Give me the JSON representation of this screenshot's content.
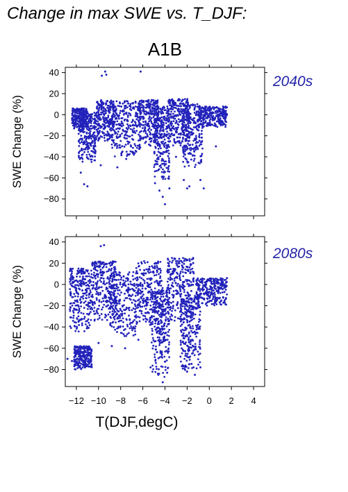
{
  "figure_title": "Change in max SWE vs. T_DJF:",
  "scenario": "A1B",
  "colors": {
    "points": "#2222bb",
    "period_label": "#2323a8"
  },
  "chart_data": [
    {
      "type": "scatter",
      "period": "2040s",
      "xlabel": "T(DJF,degC)",
      "ylabel": "SWE Change (%)",
      "xlim": [
        -13,
        5
      ],
      "ylim": [
        -96,
        45
      ],
      "xticks": [
        -12,
        -10,
        -8,
        -6,
        -4,
        -2,
        0,
        2,
        4
      ],
      "yticks": [
        40,
        20,
        0,
        -20,
        -40,
        -60,
        -80
      ],
      "xtick_labels_shown": false,
      "clusters": [
        {
          "x": [
            -12.4,
            -11.0
          ],
          "y": [
            -12,
            6
          ]
        },
        {
          "x": [
            -11.8,
            -10.2
          ],
          "y": [
            -45,
            2
          ]
        },
        {
          "x": [
            -10.2,
            -8.6
          ],
          "y": [
            -25,
            14
          ]
        },
        {
          "x": [
            -8.8,
            -6.2
          ],
          "y": [
            -40,
            13
          ]
        },
        {
          "x": [
            -6.4,
            -4.6
          ],
          "y": [
            -30,
            14
          ]
        },
        {
          "x": [
            -5.0,
            -3.6
          ],
          "y": [
            -62,
            8
          ]
        },
        {
          "x": [
            -3.8,
            -1.8
          ],
          "y": [
            -30,
            15
          ]
        },
        {
          "x": [
            -2.4,
            -0.6
          ],
          "y": [
            -50,
            10
          ]
        },
        {
          "x": [
            -1.0,
            1.6
          ],
          "y": [
            -12,
            8
          ]
        }
      ],
      "points": [
        {
          "x": -12.2,
          "y": -13
        },
        {
          "x": -11.6,
          "y": -55
        },
        {
          "x": -11.3,
          "y": -66
        },
        {
          "x": -11.0,
          "y": -68
        },
        {
          "x": -10.3,
          "y": -35
        },
        {
          "x": -9.8,
          "y": -48
        },
        {
          "x": -9.7,
          "y": 37
        },
        {
          "x": -9.4,
          "y": 41
        },
        {
          "x": -9.3,
          "y": 38
        },
        {
          "x": -8.3,
          "y": -50
        },
        {
          "x": -7.5,
          "y": -42
        },
        {
          "x": -6.6,
          "y": -35
        },
        {
          "x": -6.2,
          "y": 41
        },
        {
          "x": -4.9,
          "y": -65
        },
        {
          "x": -4.5,
          "y": -72
        },
        {
          "x": -4.2,
          "y": -78
        },
        {
          "x": -4.0,
          "y": -85
        },
        {
          "x": -3.6,
          "y": -70
        },
        {
          "x": -3.0,
          "y": -40
        },
        {
          "x": -2.3,
          "y": -62
        },
        {
          "x": -2.0,
          "y": -70
        },
        {
          "x": -1.8,
          "y": -68
        },
        {
          "x": -0.8,
          "y": -62
        },
        {
          "x": -0.5,
          "y": -70
        },
        {
          "x": 0.6,
          "y": -30
        },
        {
          "x": 0.9,
          "y": -8
        },
        {
          "x": 1.5,
          "y": -2
        }
      ]
    },
    {
      "type": "scatter",
      "period": "2080s",
      "xlabel": "T(DJF,degC)",
      "ylabel": "SWE Change (%)",
      "xlim": [
        -13,
        5
      ],
      "ylim": [
        -96,
        45
      ],
      "xticks": [
        -12,
        -10,
        -8,
        -6,
        -4,
        -2,
        0,
        2,
        4
      ],
      "yticks": [
        40,
        20,
        0,
        -20,
        -40,
        -60,
        -80
      ],
      "xtick_labels_shown": true,
      "clusters": [
        {
          "x": [
            -12.6,
            -10.6
          ],
          "y": [
            -45,
            15
          ]
        },
        {
          "x": [
            -12.2,
            -10.6
          ],
          "y": [
            -80,
            -58
          ]
        },
        {
          "x": [
            -10.6,
            -8.4
          ],
          "y": [
            -35,
            22
          ]
        },
        {
          "x": [
            -9.0,
            -6.4
          ],
          "y": [
            -50,
            12
          ]
        },
        {
          "x": [
            -6.6,
            -4.2
          ],
          "y": [
            -40,
            22
          ]
        },
        {
          "x": [
            -5.2,
            -3.6
          ],
          "y": [
            -88,
            -5
          ]
        },
        {
          "x": [
            -3.8,
            -1.4
          ],
          "y": [
            -35,
            25
          ]
        },
        {
          "x": [
            -2.6,
            -0.8
          ],
          "y": [
            -82,
            -10
          ]
        },
        {
          "x": [
            -1.2,
            1.6
          ],
          "y": [
            -20,
            6
          ]
        }
      ],
      "points": [
        {
          "x": -12.8,
          "y": -70
        },
        {
          "x": -12.4,
          "y": -72
        },
        {
          "x": -11.7,
          "y": -78
        },
        {
          "x": -11.3,
          "y": -76
        },
        {
          "x": -11.0,
          "y": -62
        },
        {
          "x": -10.0,
          "y": -55
        },
        {
          "x": -9.8,
          "y": 36
        },
        {
          "x": -9.5,
          "y": 37
        },
        {
          "x": -8.8,
          "y": -58
        },
        {
          "x": -7.6,
          "y": -60
        },
        {
          "x": -6.4,
          "y": -52
        },
        {
          "x": -5.3,
          "y": -78
        },
        {
          "x": -4.6,
          "y": -85
        },
        {
          "x": -4.2,
          "y": -92
        },
        {
          "x": -3.8,
          "y": -83
        },
        {
          "x": -2.4,
          "y": -76
        },
        {
          "x": -2.0,
          "y": -82
        },
        {
          "x": -1.3,
          "y": -85
        },
        {
          "x": -0.8,
          "y": -78
        },
        {
          "x": 0.8,
          "y": -8
        },
        {
          "x": 1.2,
          "y": 3
        },
        {
          "x": 1.6,
          "y": 6
        }
      ]
    }
  ]
}
